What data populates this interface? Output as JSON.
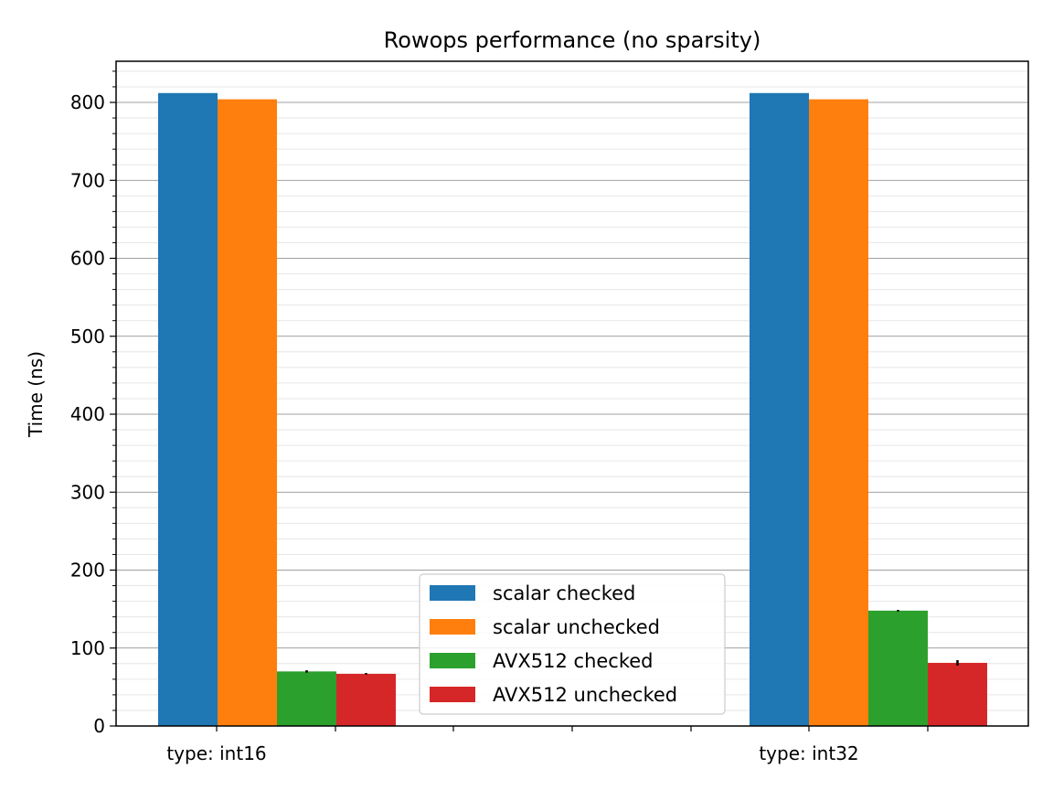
{
  "chart_data": {
    "type": "bar",
    "title": "Rowops performance (no sparsity)",
    "xlabel": "",
    "ylabel": "Time (ns)",
    "categories": [
      "type: int16",
      "type: int32"
    ],
    "ylim": [
      0,
      855
    ],
    "yticks": [
      0,
      100,
      200,
      300,
      400,
      500,
      600,
      700,
      800
    ],
    "yticks_text": [
      "0",
      "100",
      "200",
      "300",
      "400",
      "500",
      "600",
      "700",
      "800"
    ],
    "grid": {
      "major": true,
      "minor": true
    },
    "legend_position": "bottom-center",
    "series": [
      {
        "name": "scalar checked",
        "color": "#1f77b4",
        "values": [
          812,
          812
        ],
        "errors": [
          0,
          0
        ]
      },
      {
        "name": "scalar unchecked",
        "color": "#ff7f0e",
        "values": [
          804,
          804
        ],
        "errors": [
          0,
          0
        ]
      },
      {
        "name": "AVX512 checked",
        "color": "#2ca02c",
        "values": [
          70,
          148
        ],
        "errors": [
          1.5,
          1
        ]
      },
      {
        "name": "AVX512 unchecked",
        "color": "#d62728",
        "values": [
          67,
          81
        ],
        "errors": [
          1,
          3.5
        ]
      }
    ]
  }
}
